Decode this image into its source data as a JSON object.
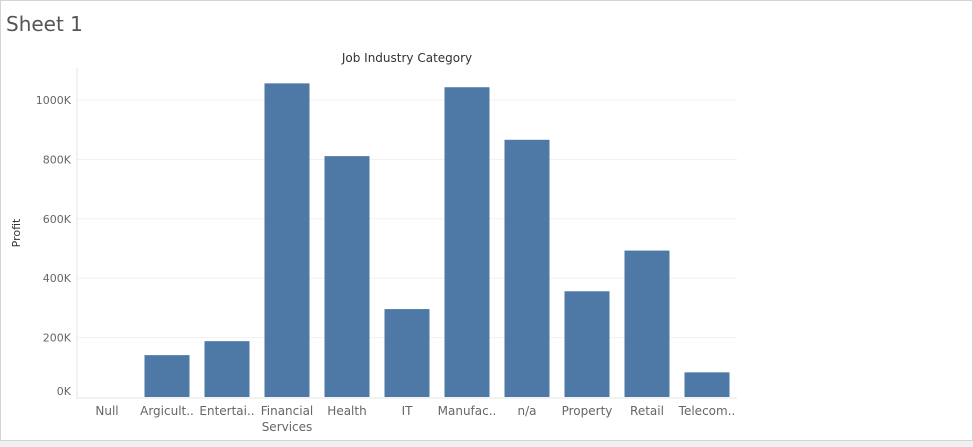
{
  "sheet": {
    "title": "Sheet 1"
  },
  "colors": {
    "bar": "#4e79a7",
    "grid": "#f0f0f0",
    "axis_text": "#666666",
    "title_text": "#333333"
  },
  "chart_data": {
    "type": "bar",
    "title": "Job Industry Category",
    "xlabel": "",
    "ylabel": "Profit",
    "categories": [
      "Null",
      "Argicult..",
      "Entertai..",
      "Financial\nServices",
      "Health",
      "IT",
      "Manufac..",
      "n/a",
      "Property",
      "Retail",
      "Telecom.."
    ],
    "values": [
      0,
      141000,
      188000,
      1056000,
      811000,
      296000,
      1043000,
      866000,
      356000,
      493000,
      83000
    ],
    "ylim": [
      0,
      1100000
    ],
    "yticks": [
      0,
      200000,
      400000,
      600000,
      800000,
      1000000
    ],
    "ytick_labels": [
      "0K",
      "200K",
      "400K",
      "600K",
      "800K",
      "1000K"
    ],
    "grid": true,
    "legend": "none"
  }
}
